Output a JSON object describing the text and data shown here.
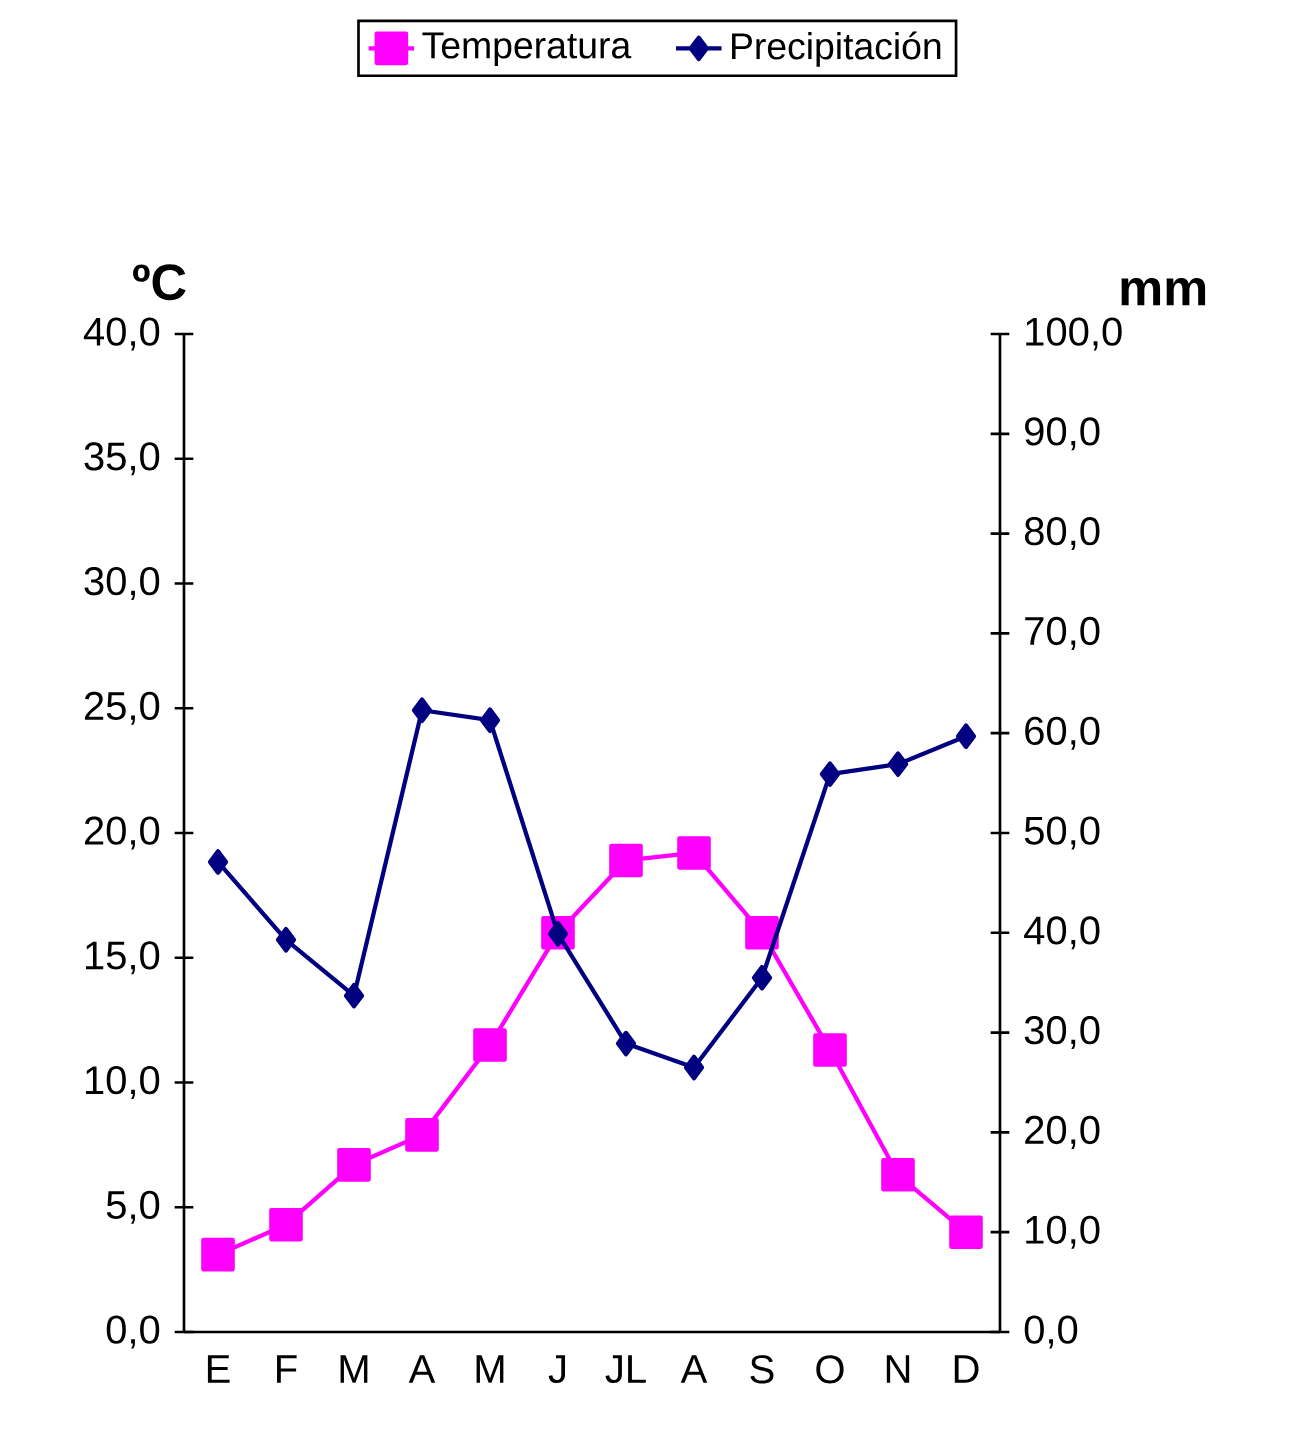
{
  "chart_data": {
    "type": "line",
    "ylabel": "ºC",
    "y2label": "mm",
    "categories": [
      "E",
      "F",
      "M",
      "A",
      "M",
      "J",
      "JL",
      "A",
      "S",
      "O",
      "N",
      "D"
    ],
    "series": [
      {
        "name": "Temperatura",
        "color": "#ff00ff",
        "marker": "square",
        "values": [
          3.1,
          4.3,
          6.7,
          7.9,
          11.5,
          16.0,
          18.9,
          19.2,
          16.0,
          11.3,
          6.3,
          4.0
        ]
      },
      {
        "name": "Precipitación",
        "color": "#000080",
        "marker": "diamond",
        "axis": "y2",
        "values": [
          47.1,
          39.3,
          33.7,
          62.3,
          61.3,
          39.9,
          28.9,
          26.5,
          35.5,
          55.9,
          56.9,
          59.7
        ]
      }
    ],
    "ylim": [
      0,
      40
    ],
    "yticks": [
      {
        "value": 0,
        "label": "0,0"
      },
      {
        "value": 5,
        "label": "5,0"
      },
      {
        "value": 10,
        "label": "10,0"
      },
      {
        "value": 15,
        "label": "15,0"
      },
      {
        "value": 20,
        "label": "20,0"
      },
      {
        "value": 25,
        "label": "25,0"
      },
      {
        "value": 30,
        "label": "30,0"
      },
      {
        "value": 35,
        "label": "35,0"
      },
      {
        "value": 40,
        "label": "40,0"
      }
    ],
    "y2lim": [
      0,
      100
    ],
    "y2ticks": [
      {
        "value": 0,
        "label": "0,0"
      },
      {
        "value": 10,
        "label": "10,0"
      },
      {
        "value": 20,
        "label": "20,0"
      },
      {
        "value": 30,
        "label": "30,0"
      },
      {
        "value": 40,
        "label": "40,0"
      },
      {
        "value": 50,
        "label": "50,0"
      },
      {
        "value": 60,
        "label": "60,0"
      },
      {
        "value": 70,
        "label": "70,0"
      },
      {
        "value": 80,
        "label": "80,0"
      },
      {
        "value": 90,
        "label": "90,0"
      },
      {
        "value": 100,
        "label": "100,0"
      }
    ],
    "grid": false,
    "legend": "top"
  }
}
